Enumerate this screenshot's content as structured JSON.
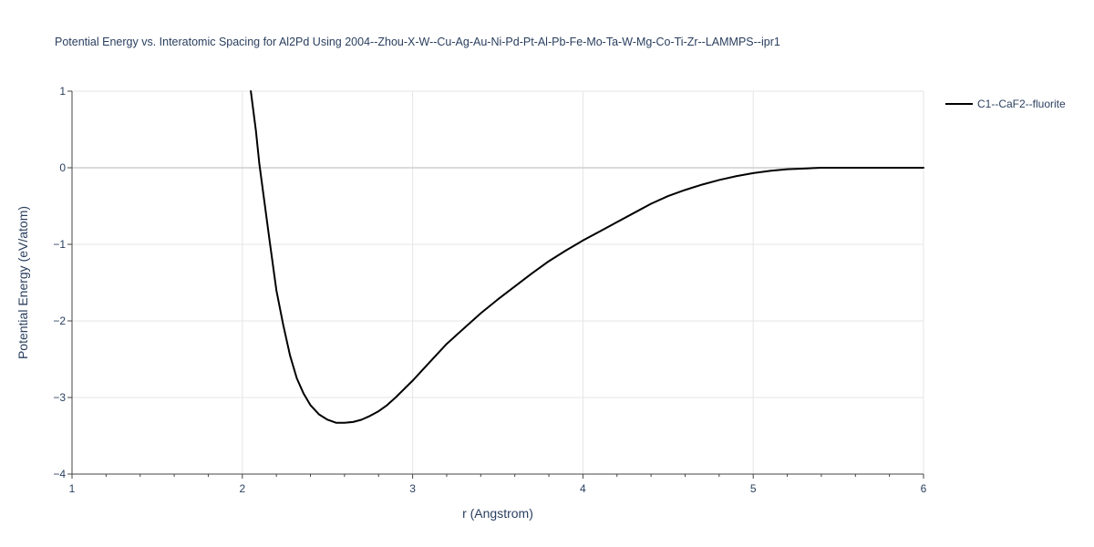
{
  "chart_data": {
    "type": "line",
    "title": "Potential Energy vs. Interatomic Spacing for Al2Pd Using 2004--Zhou-X-W--Cu-Ag-Au-Ni-Pd-Pt-Al-Pb-Fe-Mo-Ta-W-Mg-Co-Ti-Zr--LAMMPS--ipr1",
    "xlabel": "r (Angstrom)",
    "ylabel": "Potential Energy (eV/atom)",
    "xlim": [
      1,
      6
    ],
    "ylim": [
      -4,
      1
    ],
    "x_ticks": [
      1,
      2,
      3,
      4,
      5,
      6
    ],
    "x_tick_labels": [
      "1",
      "2",
      "3",
      "4",
      "5",
      "6"
    ],
    "y_ticks": [
      1,
      0,
      -1,
      -2,
      -3,
      -4
    ],
    "y_tick_labels": [
      "1",
      "0",
      "−1",
      "−2",
      "−3",
      "−4"
    ],
    "grid": true,
    "legend_position": "top-right",
    "series": [
      {
        "name": "C1--CaF2--fluorite",
        "color": "#000000",
        "x": [
          2.05,
          2.08,
          2.1,
          2.13,
          2.16,
          2.2,
          2.24,
          2.28,
          2.32,
          2.36,
          2.4,
          2.45,
          2.5,
          2.55,
          2.6,
          2.65,
          2.7,
          2.75,
          2.8,
          2.85,
          2.9,
          2.95,
          3.0,
          3.1,
          3.2,
          3.3,
          3.4,
          3.5,
          3.6,
          3.7,
          3.8,
          3.9,
          4.0,
          4.1,
          4.2,
          4.3,
          4.4,
          4.5,
          4.6,
          4.7,
          4.8,
          4.9,
          5.0,
          5.1,
          5.2,
          5.3,
          5.4,
          5.5,
          5.6,
          5.7,
          5.8,
          5.9,
          6.0
        ],
        "y": [
          1.0,
          0.48,
          0.05,
          -0.45,
          -0.95,
          -1.6,
          -2.05,
          -2.45,
          -2.75,
          -2.95,
          -3.1,
          -3.22,
          -3.29,
          -3.33,
          -3.33,
          -3.32,
          -3.29,
          -3.24,
          -3.18,
          -3.1,
          -3.0,
          -2.89,
          -2.78,
          -2.54,
          -2.3,
          -2.1,
          -1.9,
          -1.72,
          -1.55,
          -1.38,
          -1.22,
          -1.08,
          -0.95,
          -0.83,
          -0.71,
          -0.59,
          -0.47,
          -0.37,
          -0.29,
          -0.22,
          -0.16,
          -0.11,
          -0.07,
          -0.04,
          -0.02,
          -0.01,
          0.0,
          0.0,
          0.0,
          0.0,
          0.0,
          0.0,
          0.0
        ]
      }
    ]
  }
}
